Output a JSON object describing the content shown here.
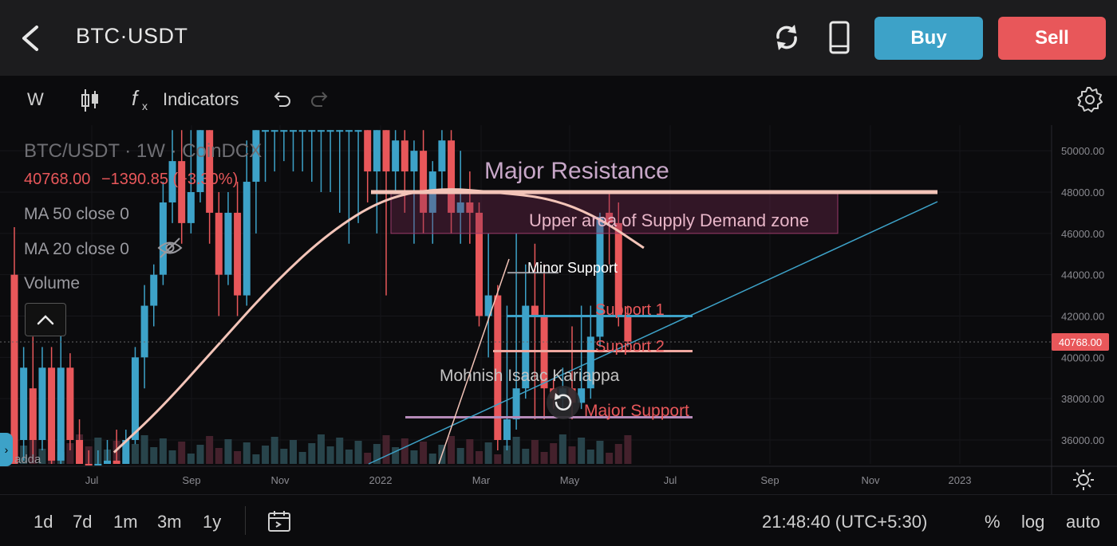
{
  "header": {
    "pair": "BTC·USDT",
    "buy_label": "Buy",
    "sell_label": "Sell",
    "icons": [
      "back-arrow-icon",
      "refresh-icon",
      "phone-icon"
    ]
  },
  "toolbar": {
    "interval": "W",
    "indicators_label": "Indicators"
  },
  "legend": {
    "title": "BTC/USDT · 1W · CoinDCX",
    "price": "40768.00",
    "change": "−1390.85 (−3.30%)",
    "ma50": "MA 50 close 0",
    "ma20": "MA 20 close 0",
    "volume": "Volume",
    "volume_tag": "adda"
  },
  "axis": {
    "y_labels": [
      "50000.00",
      "48000.00",
      "46000.00",
      "44000.00",
      "42000.00",
      "40000.00",
      "38000.00",
      "36000.00"
    ],
    "x_labels": [
      "Jul",
      "Sep",
      "Nov",
      "2022",
      "Mar",
      "May",
      "Jul",
      "Sep",
      "Nov",
      "2023"
    ],
    "last_price_tag": "40768.00"
  },
  "annotations": {
    "major_resistance": "Major Resistance",
    "supply_zone": "Upper area of Supply Demand zone",
    "minor_support": "Minor Support",
    "support1": "Support 1",
    "support2": "Support 2",
    "major_support": "Major Support",
    "author": "Mohnish Isaac Kariappa"
  },
  "bottombar": {
    "ranges": [
      "1d",
      "7d",
      "1m",
      "3m",
      "1y"
    ],
    "clock": "21:48:40 (UTC+5:30)",
    "percent": "%",
    "log": "log",
    "auto": "auto"
  },
  "chart_data": {
    "type": "candlestick",
    "ylim": [
      35400,
      51000
    ],
    "candles": [
      {
        "x": 0,
        "o": 44000,
        "c": 32000,
        "h": 46300,
        "l": 30000
      },
      {
        "x": 1,
        "o": 36000,
        "c": 39500,
        "h": 40500,
        "l": 35000
      },
      {
        "x": 2,
        "o": 38500,
        "c": 36000,
        "h": 41000,
        "l": 35000
      },
      {
        "x": 3,
        "o": 36000,
        "c": 39500,
        "h": 40500,
        "l": 35500
      },
      {
        "x": 4,
        "o": 39500,
        "c": 35000,
        "h": 40500,
        "l": 34000
      },
      {
        "x": 5,
        "o": 35000,
        "c": 39500,
        "h": 42000,
        "l": 34500
      },
      {
        "x": 6,
        "o": 39500,
        "c": 36000,
        "h": 40200,
        "l": 35500
      },
      {
        "x": 7,
        "o": 36000,
        "c": 34500,
        "h": 37000,
        "l": 33000
      },
      {
        "x": 8,
        "o": 34500,
        "c": 31000,
        "h": 35500,
        "l": 30000
      },
      {
        "x": 9,
        "o": 32000,
        "c": 34500,
        "h": 35500,
        "l": 31500
      },
      {
        "x": 10,
        "o": 34000,
        "c": 35000,
        "h": 36000,
        "l": 33000
      },
      {
        "x": 11,
        "o": 35000,
        "c": 34000,
        "h": 36500,
        "l": 33000
      },
      {
        "x": 12,
        "o": 34000,
        "c": 36000,
        "h": 36500,
        "l": 33000
      },
      {
        "x": 13,
        "o": 36000,
        "c": 40000,
        "h": 40500,
        "l": 35800
      },
      {
        "x": 14,
        "o": 40000,
        "c": 42500,
        "h": 43500,
        "l": 38500
      },
      {
        "x": 15,
        "o": 42500,
        "c": 44000,
        "h": 44500,
        "l": 41500
      },
      {
        "x": 16,
        "o": 44000,
        "c": 47500,
        "h": 48500,
        "l": 43500
      },
      {
        "x": 17,
        "o": 47500,
        "c": 49500,
        "h": 51000,
        "l": 46500
      },
      {
        "x": 18,
        "o": 49500,
        "c": 46500,
        "h": 51000,
        "l": 45500
      },
      {
        "x": 19,
        "o": 46500,
        "c": 48000,
        "h": 51000,
        "l": 46000
      },
      {
        "x": 20,
        "o": 48000,
        "c": 51000,
        "h": 51000,
        "l": 47500
      },
      {
        "x": 21,
        "o": 51000,
        "c": 47000,
        "h": 51000,
        "l": 45500
      },
      {
        "x": 22,
        "o": 47000,
        "c": 44000,
        "h": 48000,
        "l": 42000
      },
      {
        "x": 23,
        "o": 44000,
        "c": 47000,
        "h": 48000,
        "l": 43500
      },
      {
        "x": 24,
        "o": 47000,
        "c": 43000,
        "h": 48500,
        "l": 42000
      },
      {
        "x": 25,
        "o": 43000,
        "c": 48500,
        "h": 50500,
        "l": 42500
      },
      {
        "x": 26,
        "o": 48500,
        "c": 51000,
        "h": 51000,
        "l": 46000
      },
      {
        "x": 27,
        "o": 51000,
        "c": 51000,
        "h": 51000,
        "l": 48500
      },
      {
        "x": 28,
        "o": 51000,
        "c": 51000,
        "h": 51000,
        "l": 49000
      },
      {
        "x": 29,
        "o": 51000,
        "c": 51000,
        "h": 51000,
        "l": 49500
      },
      {
        "x": 30,
        "o": 51000,
        "c": 51000,
        "h": 51000,
        "l": 49000
      },
      {
        "x": 31,
        "o": 51000,
        "c": 51000,
        "h": 51000,
        "l": 49000
      },
      {
        "x": 32,
        "o": 51000,
        "c": 51000,
        "h": 51000,
        "l": 48500
      },
      {
        "x": 33,
        "o": 51000,
        "c": 51000,
        "h": 51000,
        "l": 48000
      },
      {
        "x": 34,
        "o": 51000,
        "c": 51000,
        "h": 51000,
        "l": 48000
      },
      {
        "x": 35,
        "o": 51000,
        "c": 51000,
        "h": 51000,
        "l": 47000
      },
      {
        "x": 36,
        "o": 51000,
        "c": 51000,
        "h": 51000,
        "l": 45500
      },
      {
        "x": 37,
        "o": 51000,
        "c": 51000,
        "h": 51000,
        "l": 46500
      },
      {
        "x": 38,
        "o": 51000,
        "c": 49000,
        "h": 51000,
        "l": 47500
      },
      {
        "x": 39,
        "o": 49000,
        "c": 51000,
        "h": 51000,
        "l": 46000
      },
      {
        "x": 40,
        "o": 51000,
        "c": 49000,
        "h": 51000,
        "l": 43000
      },
      {
        "x": 41,
        "o": 49000,
        "c": 50500,
        "h": 51000,
        "l": 48000
      },
      {
        "x": 42,
        "o": 50500,
        "c": 49000,
        "h": 51000,
        "l": 47000
      },
      {
        "x": 43,
        "o": 49000,
        "c": 50000,
        "h": 50500,
        "l": 45500
      },
      {
        "x": 44,
        "o": 50000,
        "c": 47000,
        "h": 51000,
        "l": 46000
      },
      {
        "x": 45,
        "o": 47000,
        "c": 49000,
        "h": 49500,
        "l": 45500
      },
      {
        "x": 46,
        "o": 49000,
        "c": 50500,
        "h": 51000,
        "l": 48000
      },
      {
        "x": 47,
        "o": 50500,
        "c": 47000,
        "h": 51000,
        "l": 46000
      },
      {
        "x": 48,
        "o": 47000,
        "c": 47500,
        "h": 50000,
        "l": 45500
      },
      {
        "x": 49,
        "o": 47500,
        "c": 47000,
        "h": 49000,
        "l": 45500
      },
      {
        "x": 50,
        "o": 47000,
        "c": 42000,
        "h": 47500,
        "l": 41500
      },
      {
        "x": 51,
        "o": 42000,
        "c": 43000,
        "h": 46000,
        "l": 40000
      },
      {
        "x": 52,
        "o": 43000,
        "c": 36000,
        "h": 43500,
        "l": 35500
      },
      {
        "x": 53,
        "o": 36000,
        "c": 37000,
        "h": 42500,
        "l": 35500
      },
      {
        "x": 54,
        "o": 37000,
        "c": 38500,
        "h": 46000,
        "l": 36500
      },
      {
        "x": 55,
        "o": 38500,
        "c": 42500,
        "h": 44500,
        "l": 38000
      },
      {
        "x": 56,
        "o": 42500,
        "c": 42000,
        "h": 45500,
        "l": 37000
      },
      {
        "x": 57,
        "o": 42000,
        "c": 38500,
        "h": 44500,
        "l": 37000
      },
      {
        "x": 58,
        "o": 38500,
        "c": 38000,
        "h": 39000,
        "l": 37500
      },
      {
        "x": 59,
        "o": 38000,
        "c": 38500,
        "h": 39500,
        "l": 37500
      },
      {
        "x": 60,
        "o": 38500,
        "c": 37800,
        "h": 41500,
        "l": 37000
      },
      {
        "x": 61,
        "o": 37800,
        "c": 38500,
        "h": 42500,
        "l": 37500
      },
      {
        "x": 62,
        "o": 38500,
        "c": 41000,
        "h": 42500,
        "l": 38000
      },
      {
        "x": 63,
        "o": 41000,
        "c": 46800,
        "h": 47000,
        "l": 40500
      },
      {
        "x": 64,
        "o": 47000,
        "c": 46500,
        "h": 48000,
        "l": 44500
      },
      {
        "x": 65,
        "o": 46500,
        "c": 42000,
        "h": 47500,
        "l": 41500
      },
      {
        "x": 66,
        "o": 42000,
        "c": 40768,
        "h": 42500,
        "l": 40500
      }
    ],
    "ma_line": [
      {
        "x": 9,
        "y": 35400
      },
      {
        "x": 14,
        "y": 37500
      },
      {
        "x": 20,
        "y": 40500
      },
      {
        "x": 26,
        "y": 43500
      },
      {
        "x": 32,
        "y": 46000
      },
      {
        "x": 38,
        "y": 47700
      },
      {
        "x": 44,
        "y": 48200
      },
      {
        "x": 50,
        "y": 48000
      },
      {
        "x": 56,
        "y": 47700
      },
      {
        "x": 61,
        "y": 46800
      },
      {
        "x": 66,
        "y": 45300
      }
    ],
    "levels": [
      {
        "name": "Major Resistance",
        "y": 48000
      },
      {
        "name": "Minor Support",
        "y": 44100
      },
      {
        "name": "Support 1",
        "y": 42000
      },
      {
        "name": "Support 2",
        "y": 40300
      },
      {
        "name": "Major Support",
        "y": 37100
      }
    ],
    "supply_zone": {
      "top": 48000,
      "bottom": 46000
    }
  }
}
